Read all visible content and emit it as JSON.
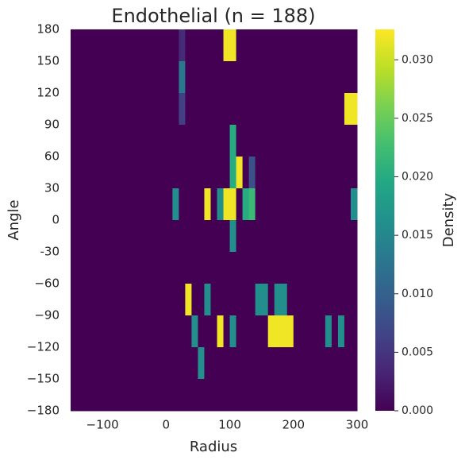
{
  "chart_data": {
    "type": "heatmap",
    "title": "Endothelial (n = 188)",
    "x_label": "Radius",
    "y_label": "Angle",
    "colorbar_label": "Density",
    "colormap": "viridis",
    "xlim": [
      -150,
      300
    ],
    "ylim": [
      -180,
      180
    ],
    "zlim": [
      0,
      0.0326
    ],
    "xticks": [
      {
        "value": -100,
        "label": "−100"
      },
      0,
      100,
      200,
      300
    ],
    "yticks": [
      {
        "value": -180,
        "label": "−180"
      },
      {
        "value": -150,
        "label": "−150"
      },
      {
        "value": -120,
        "label": "−120"
      },
      {
        "value": -90,
        "label": "−90"
      },
      {
        "value": -60,
        "label": "−60"
      },
      -30,
      0,
      30,
      60,
      90,
      120,
      150,
      180
    ],
    "zticks": [
      {
        "value": 0,
        "label": "0.000"
      },
      0.005,
      {
        "value": 0.01,
        "label": "0.010"
      },
      0.015,
      {
        "value": 0.02,
        "label": "0.020"
      },
      0.025,
      {
        "value": 0.03,
        "label": "0.030"
      }
    ],
    "z": [
      [
        0,
        0,
        0,
        0,
        0,
        0,
        0,
        0,
        0,
        0,
        0,
        0,
        0,
        0,
        0,
        0,
        0,
        0.004,
        0,
        0,
        0,
        0,
        0,
        0,
        0.032,
        0.032,
        0,
        0,
        0,
        0,
        0,
        0,
        0,
        0,
        0,
        0,
        0,
        0,
        0,
        0,
        0,
        0,
        0,
        0,
        0
      ],
      [
        0,
        0,
        0,
        0,
        0,
        0,
        0,
        0,
        0,
        0,
        0,
        0,
        0,
        0,
        0,
        0,
        0,
        0.013,
        0,
        0,
        0,
        0,
        0,
        0,
        0,
        0,
        0,
        0,
        0,
        0,
        0,
        0,
        0,
        0,
        0,
        0,
        0,
        0,
        0,
        0,
        0,
        0,
        0,
        0,
        0
      ],
      [
        0,
        0,
        0,
        0,
        0,
        0,
        0,
        0,
        0,
        0,
        0,
        0,
        0,
        0,
        0,
        0,
        0,
        0.006,
        0,
        0,
        0,
        0,
        0,
        0,
        0,
        0,
        0,
        0,
        0,
        0,
        0,
        0,
        0,
        0,
        0,
        0,
        0,
        0,
        0,
        0,
        0,
        0,
        0,
        0.032,
        0.032
      ],
      [
        0,
        0,
        0,
        0,
        0,
        0,
        0,
        0,
        0,
        0,
        0,
        0,
        0,
        0,
        0,
        0,
        0,
        0,
        0,
        0,
        0,
        0,
        0,
        0,
        0,
        0.02,
        0,
        0,
        0,
        0,
        0,
        0,
        0,
        0,
        0,
        0,
        0,
        0,
        0,
        0,
        0,
        0,
        0,
        0,
        0
      ],
      [
        0,
        0,
        0,
        0,
        0,
        0,
        0,
        0,
        0,
        0,
        0,
        0,
        0,
        0,
        0,
        0,
        0,
        0,
        0,
        0,
        0,
        0,
        0,
        0,
        0,
        0.02,
        0.032,
        0,
        0.008,
        0,
        0,
        0,
        0,
        0,
        0,
        0,
        0,
        0,
        0,
        0,
        0,
        0,
        0,
        0,
        0
      ],
      [
        0,
        0,
        0,
        0,
        0,
        0,
        0,
        0,
        0,
        0,
        0,
        0,
        0,
        0,
        0,
        0,
        0.016,
        0,
        0,
        0,
        0,
        0.032,
        0,
        0.016,
        0.032,
        0.032,
        0,
        0.02,
        0.022,
        0,
        0,
        0,
        0,
        0,
        0,
        0,
        0,
        0,
        0,
        0,
        0,
        0,
        0,
        0,
        0.016
      ],
      [
        0,
        0,
        0,
        0,
        0,
        0,
        0,
        0,
        0,
        0,
        0,
        0,
        0,
        0,
        0,
        0,
        0,
        0,
        0,
        0,
        0,
        0,
        0,
        0,
        0,
        0.016,
        0,
        0,
        0,
        0,
        0,
        0,
        0,
        0,
        0,
        0,
        0,
        0,
        0,
        0,
        0,
        0,
        0,
        0,
        0
      ],
      [
        0,
        0,
        0,
        0,
        0,
        0,
        0,
        0,
        0,
        0,
        0,
        0,
        0,
        0,
        0,
        0,
        0,
        0,
        0,
        0,
        0,
        0,
        0,
        0,
        0,
        0,
        0,
        0,
        0,
        0,
        0,
        0,
        0,
        0,
        0,
        0,
        0,
        0,
        0,
        0,
        0,
        0,
        0,
        0,
        0
      ],
      [
        0,
        0,
        0,
        0,
        0,
        0,
        0,
        0,
        0,
        0,
        0,
        0,
        0,
        0,
        0,
        0,
        0,
        0,
        0.032,
        0,
        0,
        0.016,
        0,
        0,
        0,
        0,
        0,
        0,
        0,
        0.016,
        0.016,
        0,
        0.016,
        0.016,
        0,
        0,
        0,
        0,
        0,
        0,
        0,
        0,
        0,
        0,
        0
      ],
      [
        0,
        0,
        0,
        0,
        0,
        0,
        0,
        0,
        0,
        0,
        0,
        0,
        0,
        0,
        0,
        0,
        0,
        0,
        0,
        0.016,
        0,
        0,
        0,
        0.032,
        0,
        0.016,
        0,
        0,
        0,
        0,
        0,
        0.032,
        0.032,
        0.032,
        0.032,
        0,
        0,
        0,
        0,
        0,
        0.016,
        0,
        0.016,
        0,
        0
      ],
      [
        0,
        0,
        0,
        0,
        0,
        0,
        0,
        0,
        0,
        0,
        0,
        0,
        0,
        0,
        0,
        0,
        0,
        0,
        0,
        0,
        0.016,
        0,
        0,
        0,
        0,
        0,
        0,
        0,
        0,
        0,
        0,
        0,
        0,
        0,
        0,
        0,
        0,
        0,
        0,
        0,
        0,
        0,
        0,
        0,
        0
      ],
      [
        0,
        0,
        0,
        0,
        0,
        0,
        0,
        0,
        0,
        0,
        0,
        0,
        0,
        0,
        0,
        0,
        0,
        0,
        0,
        0,
        0,
        0,
        0,
        0,
        0,
        0,
        0,
        0,
        0,
        0,
        0,
        0,
        0,
        0,
        0,
        0,
        0,
        0,
        0,
        0,
        0,
        0,
        0,
        0,
        0
      ]
    ]
  }
}
